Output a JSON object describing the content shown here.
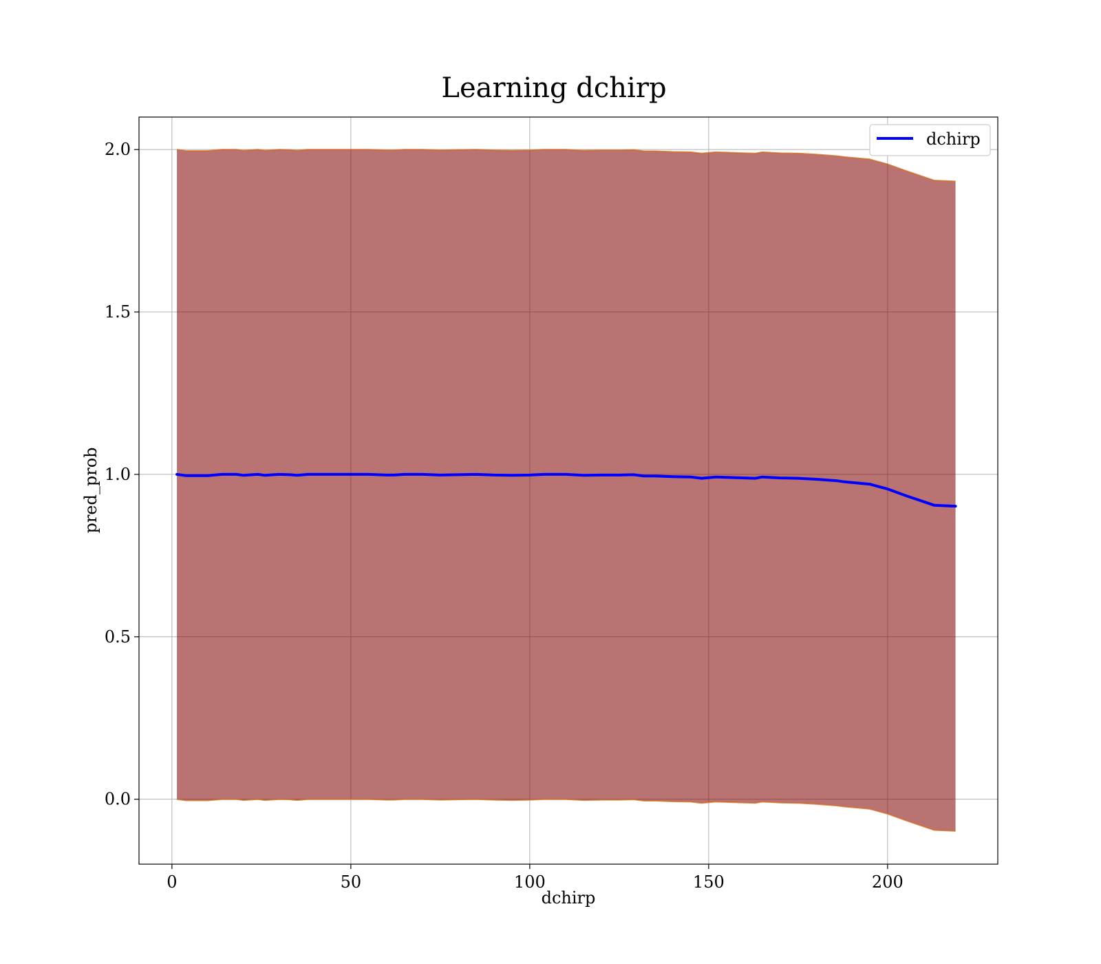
{
  "chart_data": {
    "type": "line",
    "title": "Learning dchirp",
    "xlabel": "dchirp",
    "ylabel": "pred_prob",
    "xlim": [
      -9.2,
      230.8
    ],
    "ylim": [
      -0.2,
      2.1
    ],
    "x_ticks": [
      0,
      50,
      100,
      150,
      200
    ],
    "x_tick_labels": [
      "0",
      "50",
      "100",
      "150",
      "200"
    ],
    "y_ticks": [
      0.0,
      0.5,
      1.0,
      1.5,
      2.0
    ],
    "y_tick_labels": [
      "0.0",
      "0.5",
      "1.0",
      "1.5",
      "2.0"
    ],
    "grid": true,
    "legend": {
      "position": "top-right",
      "entries": [
        "dchirp"
      ]
    },
    "colors": {
      "line": "#0000ff",
      "band_fill": "#800000",
      "band_edge": "#d2691e"
    },
    "series": [
      {
        "name": "dchirp",
        "x": [
          1.4,
          4,
          8,
          10,
          14,
          18,
          20,
          24,
          26,
          30,
          33,
          35,
          38,
          40,
          46,
          50,
          55,
          60,
          62,
          65,
          70,
          75,
          80,
          85,
          90,
          95,
          100,
          104,
          110,
          115,
          120,
          125,
          129,
          132,
          135,
          140,
          145,
          148,
          152,
          155,
          160,
          163,
          165,
          170,
          175,
          180,
          186,
          188,
          195,
          200,
          205,
          213,
          219
        ],
        "y": [
          1.0,
          0.996,
          0.996,
          0.996,
          1.0,
          1.0,
          0.997,
          1.0,
          0.997,
          1.0,
          0.999,
          0.997,
          1.0,
          1.0,
          1.0,
          1.0,
          1.0,
          0.998,
          0.998,
          1.0,
          1.0,
          0.998,
          0.999,
          1.0,
          0.998,
          0.997,
          0.998,
          1.0,
          1.0,
          0.997,
          0.998,
          0.998,
          0.999,
          0.995,
          0.995,
          0.993,
          0.992,
          0.988,
          0.992,
          0.991,
          0.989,
          0.988,
          0.992,
          0.989,
          0.988,
          0.985,
          0.98,
          0.977,
          0.97,
          0.955,
          0.935,
          0.905,
          0.902
        ],
        "band_upper": [
          2.0,
          1.996,
          1.996,
          1.996,
          2.0,
          2.0,
          1.997,
          2.0,
          1.997,
          2.0,
          1.999,
          1.997,
          2.0,
          2.0,
          2.0,
          2.0,
          2.0,
          1.998,
          1.998,
          2.0,
          2.0,
          1.998,
          1.999,
          2.0,
          1.998,
          1.997,
          1.998,
          2.0,
          2.0,
          1.997,
          1.998,
          1.998,
          1.999,
          1.995,
          1.995,
          1.993,
          1.992,
          1.988,
          1.992,
          1.991,
          1.989,
          1.988,
          1.992,
          1.989,
          1.988,
          1.985,
          1.98,
          1.977,
          1.97,
          1.955,
          1.935,
          1.905,
          1.902
        ],
        "band_lower": [
          0.0,
          -0.004,
          -0.004,
          -0.004,
          0.0,
          0.0,
          -0.003,
          0.0,
          -0.003,
          0.0,
          -0.001,
          -0.003,
          0.0,
          0.0,
          0.0,
          0.0,
          0.0,
          -0.002,
          -0.002,
          0.0,
          0.0,
          -0.002,
          -0.001,
          0.0,
          -0.002,
          -0.003,
          -0.002,
          0.0,
          0.0,
          -0.003,
          -0.002,
          -0.002,
          -0.001,
          -0.005,
          -0.005,
          -0.007,
          -0.008,
          -0.012,
          -0.008,
          -0.009,
          -0.011,
          -0.012,
          -0.008,
          -0.011,
          -0.012,
          -0.015,
          -0.02,
          -0.023,
          -0.03,
          -0.045,
          -0.065,
          -0.095,
          -0.098
        ]
      }
    ]
  }
}
